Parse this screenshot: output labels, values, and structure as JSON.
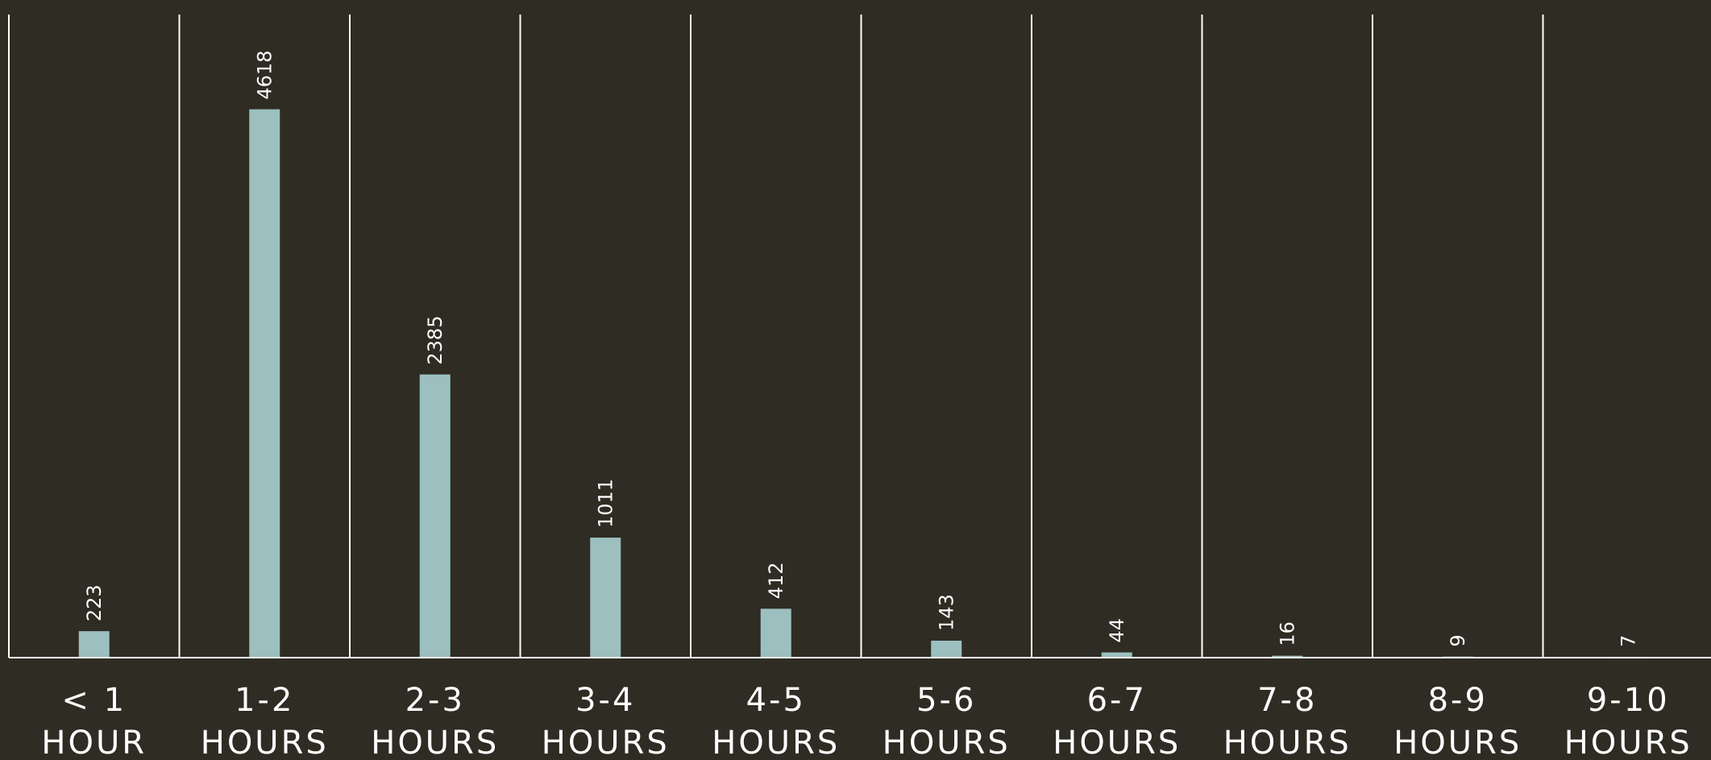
{
  "chart_data": {
    "type": "bar",
    "categories": [
      [
        "< 1",
        "HOUR"
      ],
      [
        "1-2",
        "HOURS"
      ],
      [
        "2-3",
        "HOURS"
      ],
      [
        "3-4",
        "HOURS"
      ],
      [
        "4-5",
        "HOURS"
      ],
      [
        "5-6",
        "HOURS"
      ],
      [
        "6-7",
        "HOURS"
      ],
      [
        "7-8",
        "HOURS"
      ],
      [
        "8-9",
        "HOURS"
      ],
      [
        "9-10",
        "HOURS"
      ]
    ],
    "values": [
      223,
      4618,
      2385,
      1011,
      412,
      143,
      44,
      16,
      9,
      7
    ],
    "title": "",
    "xlabel": "",
    "ylabel": "",
    "ylim": [
      0,
      5000
    ],
    "grid": false,
    "colors": {
      "background": "#2e2c23",
      "bar": "#9cbfbf",
      "text": "#ffffff"
    }
  }
}
